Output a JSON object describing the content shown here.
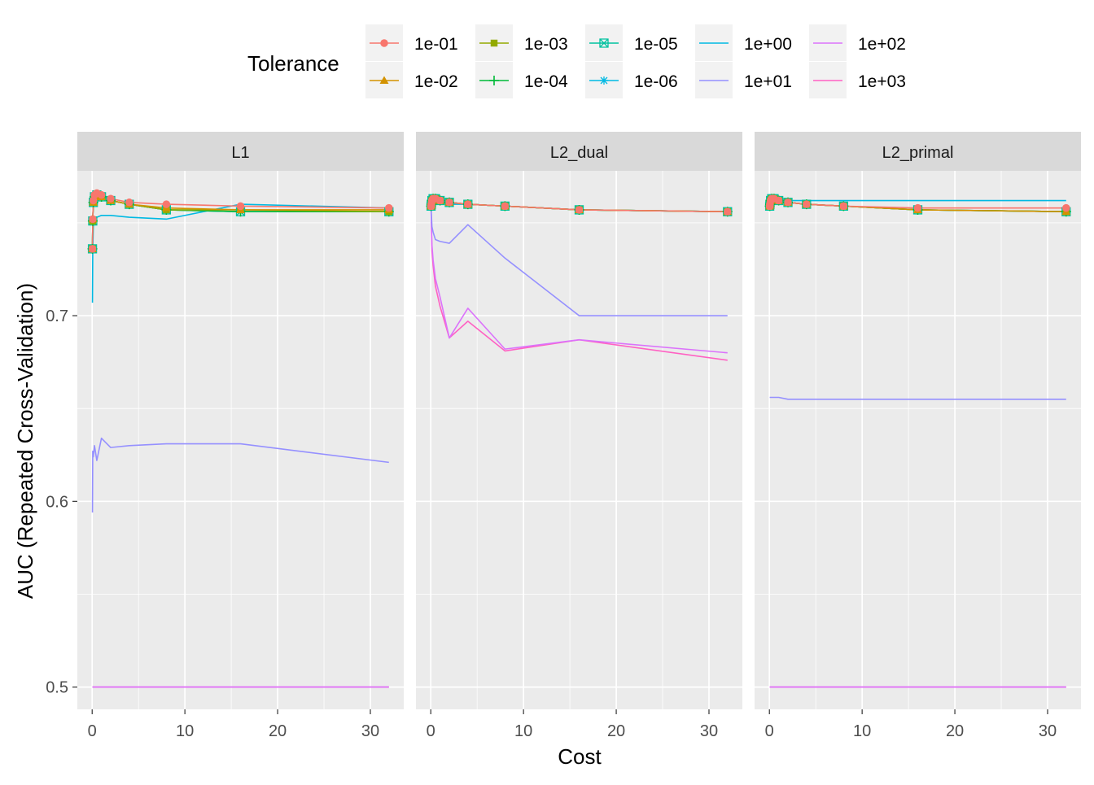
{
  "chart_data": {
    "type": "line",
    "legend": {
      "title": "Tolerance",
      "position": "top"
    },
    "xlabel": "Cost",
    "ylabel": "AUC (Repeated Cross-Validation)",
    "xlim": [
      -1.6,
      33.6
    ],
    "ylim": [
      0.488,
      0.778
    ],
    "x_ticks": [
      0,
      10,
      20,
      30
    ],
    "y_ticks": [
      0.5,
      0.6,
      0.7
    ],
    "y_tick_labels": [
      "0.5",
      "0.6",
      "0.7"
    ],
    "grid": true,
    "x": [
      0.03125,
      0.0625,
      0.125,
      0.25,
      0.5,
      1,
      2,
      4,
      8,
      16,
      32
    ],
    "series": [
      {
        "name": "1e-01",
        "color": "#F8766D",
        "marker": "circle"
      },
      {
        "name": "1e-02",
        "color": "#D39200",
        "marker": "triangle"
      },
      {
        "name": "1e-03",
        "color": "#93AA00",
        "marker": "square"
      },
      {
        "name": "1e-04",
        "color": "#00BA38",
        "marker": "plus"
      },
      {
        "name": "1e-05",
        "color": "#00C19F",
        "marker": "boxcross"
      },
      {
        "name": "1e-06",
        "color": "#00B9E3",
        "marker": "asterisk"
      },
      {
        "name": "1e+00",
        "color": "#00B9E3",
        "marker": "none"
      },
      {
        "name": "1e+01",
        "color": "#9590FF",
        "marker": "none"
      },
      {
        "name": "1e+02",
        "color": "#DB72FB",
        "marker": "none"
      },
      {
        "name": "1e+03",
        "color": "#FF61C3",
        "marker": "none"
      }
    ],
    "panels": [
      {
        "label": "L1",
        "values": {
          "1e-01": [
            0.736,
            0.752,
            0.762,
            0.765,
            0.766,
            0.765,
            0.763,
            0.761,
            0.76,
            0.759,
            0.758
          ],
          "1e-02": [
            0.736,
            0.752,
            0.761,
            0.764,
            0.765,
            0.764,
            0.762,
            0.76,
            0.758,
            0.757,
            0.757
          ],
          "1e-03": [
            0.736,
            0.751,
            0.761,
            0.764,
            0.765,
            0.764,
            0.762,
            0.76,
            0.757,
            0.757,
            0.756
          ],
          "1e-04": [
            0.736,
            0.751,
            0.761,
            0.764,
            0.765,
            0.764,
            0.762,
            0.76,
            0.757,
            0.756,
            0.756
          ],
          "1e-05": [
            0.736,
            0.751,
            0.761,
            0.764,
            0.765,
            0.764,
            0.762,
            0.76,
            0.757,
            0.756,
            0.756
          ],
          "1e-06": [
            0.736,
            0.751,
            0.761,
            0.764,
            0.765,
            0.764,
            0.762,
            0.76,
            0.757,
            0.756,
            0.756
          ],
          "1e+00": [
            0.707,
            0.735,
            0.748,
            0.752,
            0.753,
            0.754,
            0.754,
            0.753,
            0.752,
            0.76,
            0.758
          ],
          "1e+01": [
            0.594,
            0.627,
            0.624,
            0.63,
            0.622,
            0.634,
            0.629,
            0.63,
            0.631,
            0.631,
            0.621
          ],
          "1e+02": [
            0.5,
            0.5,
            0.5,
            0.5,
            0.5,
            0.5,
            0.5,
            0.5,
            0.5,
            0.5,
            0.5
          ],
          "1e+03": [
            0.5,
            0.5,
            0.5,
            0.5,
            0.5,
            0.5,
            0.5,
            0.5,
            0.5,
            0.5,
            0.5
          ]
        }
      },
      {
        "label": "L2_dual",
        "values": {
          "1e-01": [
            0.759,
            0.76,
            0.762,
            0.763,
            0.763,
            0.762,
            0.761,
            0.76,
            0.759,
            0.757,
            0.756
          ],
          "1e-02": [
            0.759,
            0.76,
            0.762,
            0.763,
            0.763,
            0.762,
            0.761,
            0.76,
            0.759,
            0.757,
            0.756
          ],
          "1e-03": [
            0.759,
            0.76,
            0.762,
            0.763,
            0.763,
            0.762,
            0.761,
            0.76,
            0.759,
            0.757,
            0.756
          ],
          "1e-04": [
            0.759,
            0.76,
            0.762,
            0.763,
            0.763,
            0.762,
            0.761,
            0.76,
            0.759,
            0.757,
            0.756
          ],
          "1e-05": [
            0.759,
            0.76,
            0.762,
            0.763,
            0.763,
            0.762,
            0.761,
            0.76,
            0.759,
            0.757,
            0.756
          ],
          "1e-06": [
            0.759,
            0.76,
            0.762,
            0.763,
            0.763,
            0.762,
            0.761,
            0.76,
            0.759,
            0.757,
            0.756
          ],
          "1e+00": [
            0.759,
            0.76,
            0.761,
            0.762,
            0.762,
            0.761,
            0.76,
            0.76,
            0.759,
            0.757,
            0.756
          ],
          "1e+01": [
            0.759,
            0.755,
            0.748,
            0.745,
            0.741,
            0.74,
            0.739,
            0.749,
            0.731,
            0.7,
            0.7
          ],
          "1e+02": [
            0.759,
            0.75,
            0.738,
            0.73,
            0.72,
            0.71,
            0.688,
            0.704,
            0.682,
            0.687,
            0.68
          ],
          "1e+03": [
            0.759,
            0.748,
            0.735,
            0.727,
            0.716,
            0.705,
            0.688,
            0.697,
            0.681,
            0.687,
            0.676
          ]
        }
      },
      {
        "label": "L2_primal",
        "values": {
          "1e-01": [
            0.759,
            0.76,
            0.762,
            0.763,
            0.763,
            0.762,
            0.761,
            0.76,
            0.759,
            0.758,
            0.758
          ],
          "1e-02": [
            0.759,
            0.76,
            0.762,
            0.763,
            0.763,
            0.762,
            0.761,
            0.76,
            0.759,
            0.757,
            0.756
          ],
          "1e-03": [
            0.759,
            0.76,
            0.762,
            0.763,
            0.763,
            0.762,
            0.761,
            0.76,
            0.759,
            0.757,
            0.756
          ],
          "1e-04": [
            0.759,
            0.76,
            0.762,
            0.763,
            0.763,
            0.762,
            0.761,
            0.76,
            0.759,
            0.757,
            0.756
          ],
          "1e-05": [
            0.759,
            0.76,
            0.762,
            0.763,
            0.763,
            0.762,
            0.761,
            0.76,
            0.759,
            0.757,
            0.756
          ],
          "1e-06": [
            0.759,
            0.76,
            0.762,
            0.763,
            0.763,
            0.762,
            0.761,
            0.76,
            0.759,
            0.757,
            0.756
          ],
          "1e+00": [
            0.761,
            0.761,
            0.762,
            0.762,
            0.762,
            0.762,
            0.762,
            0.762,
            0.762,
            0.762,
            0.762
          ],
          "1e+01": [
            0.656,
            0.656,
            0.656,
            0.656,
            0.656,
            0.656,
            0.655,
            0.655,
            0.655,
            0.655,
            0.655
          ],
          "1e+02": [
            0.5,
            0.5,
            0.5,
            0.5,
            0.5,
            0.5,
            0.5,
            0.5,
            0.5,
            0.5,
            0.5
          ],
          "1e+03": [
            0.5,
            0.5,
            0.5,
            0.5,
            0.5,
            0.5,
            0.5,
            0.5,
            0.5,
            0.5,
            0.5
          ]
        }
      }
    ]
  }
}
